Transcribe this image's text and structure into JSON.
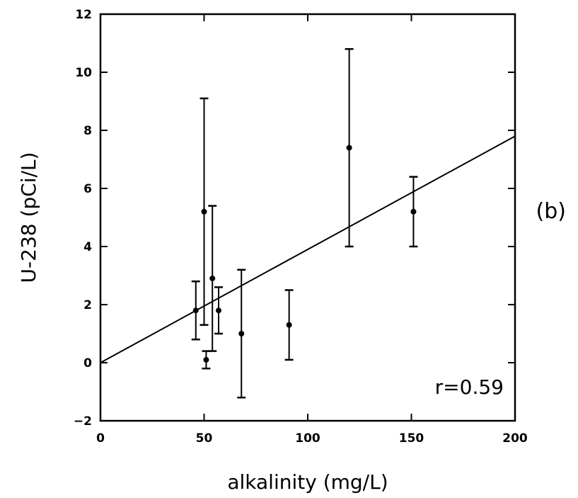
{
  "chart_data": {
    "type": "scatter",
    "xlabel": "alkalinity (mg/L)",
    "ylabel": "U-238 (pCi/L)",
    "xlim": [
      0,
      200
    ],
    "ylim": [
      -2,
      12
    ],
    "x_ticks": [
      0,
      50,
      100,
      150,
      200
    ],
    "y_ticks": [
      -2,
      0,
      2,
      4,
      6,
      8,
      10,
      12
    ],
    "x_tick_labels": [
      "0",
      "50",
      "100",
      "150",
      "200"
    ],
    "y_tick_labels": [
      "-2",
      "0",
      "2",
      "4",
      "6",
      "8",
      "10",
      "12"
    ],
    "grid": false,
    "points": [
      {
        "x": 46,
        "y": 1.8,
        "y_low": 0.8,
        "y_high": 2.8
      },
      {
        "x": 50,
        "y": 5.2,
        "y_low": 1.3,
        "y_high": 9.1
      },
      {
        "x": 51,
        "y": 0.1,
        "y_low": -0.2,
        "y_high": 0.4
      },
      {
        "x": 54,
        "y": 2.9,
        "y_low": 0.4,
        "y_high": 5.4
      },
      {
        "x": 57,
        "y": 1.8,
        "y_low": 1.0,
        "y_high": 2.6
      },
      {
        "x": 68,
        "y": 1.0,
        "y_low": -1.2,
        "y_high": 3.2
      },
      {
        "x": 91,
        "y": 1.3,
        "y_low": 0.1,
        "y_high": 2.5
      },
      {
        "x": 120,
        "y": 7.4,
        "y_low": 4.0,
        "y_high": 10.8
      },
      {
        "x": 151,
        "y": 5.2,
        "y_low": 4.0,
        "y_high": 6.4
      }
    ],
    "fit_line": {
      "x": [
        0,
        200
      ],
      "y": [
        0.0,
        7.8
      ]
    },
    "annotation": "r=0.59",
    "panel_label": "(b)"
  }
}
